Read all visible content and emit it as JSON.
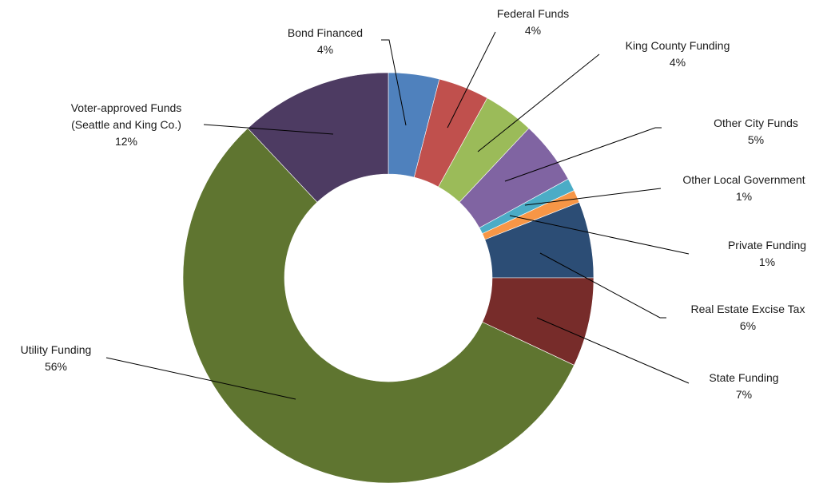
{
  "chart_data": {
    "type": "pie",
    "donut": true,
    "title": "",
    "legend": "none",
    "slices": [
      {
        "label": [
          "Bond Financed"
        ],
        "pct_label": "4%",
        "value": 4,
        "color": "#4F81BD"
      },
      {
        "label": [
          "Federal Funds"
        ],
        "pct_label": "4%",
        "value": 4,
        "color": "#C0504D"
      },
      {
        "label": [
          "King County Funding"
        ],
        "pct_label": "4%",
        "value": 4,
        "color": "#9BBB59"
      },
      {
        "label": [
          "Other City Funds"
        ],
        "pct_label": "5%",
        "value": 5,
        "color": "#8064A2"
      },
      {
        "label": [
          "Other Local Government"
        ],
        "pct_label": "1%",
        "value": 1,
        "color": "#4BACC6"
      },
      {
        "label": [
          "Private Funding"
        ],
        "pct_label": "1%",
        "value": 1,
        "color": "#F79646"
      },
      {
        "label": [
          "Real Estate Excise Tax"
        ],
        "pct_label": "6%",
        "value": 6,
        "color": "#2C4D75"
      },
      {
        "label": [
          "State Funding"
        ],
        "pct_label": "7%",
        "value": 7,
        "color": "#772C2A"
      },
      {
        "label": [
          "Utility Funding"
        ],
        "pct_label": "56%",
        "value": 56,
        "color": "#5F7530"
      },
      {
        "label": [
          "Voter-approved Funds",
          "(Seattle and King Co.)"
        ],
        "pct_label": "12%",
        "value": 12,
        "color": "#4D3B62"
      }
    ]
  }
}
